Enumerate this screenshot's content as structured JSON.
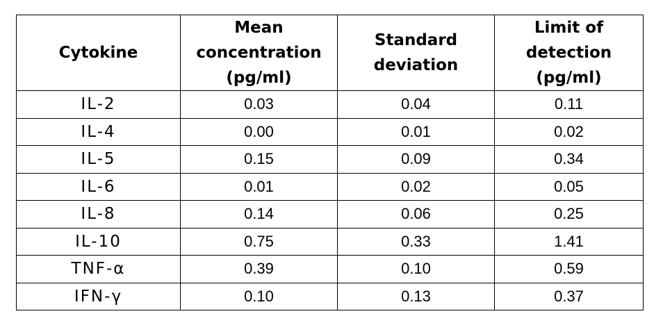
{
  "table": {
    "headers": [
      {
        "lines": [
          "Cytokine"
        ]
      },
      {
        "lines": [
          "Mean",
          "concentration",
          "(pg/ml)"
        ]
      },
      {
        "lines": [
          "Standard",
          "deviation"
        ]
      },
      {
        "lines": [
          "Limit of",
          "detection",
          "(pg/ml)"
        ]
      }
    ],
    "rows": [
      {
        "cytokine": "IL-2",
        "mean": "0.03",
        "sd": "0.04",
        "lod": "0.11"
      },
      {
        "cytokine": "IL-4",
        "mean": "0.00",
        "sd": "0.01",
        "lod": "0.02"
      },
      {
        "cytokine": "IL-5",
        "mean": "0.15",
        "sd": "0.09",
        "lod": "0.34"
      },
      {
        "cytokine": "IL-6",
        "mean": "0.01",
        "sd": "0.02",
        "lod": "0.05"
      },
      {
        "cytokine": "IL-8",
        "mean": "0.14",
        "sd": "0.06",
        "lod": "0.25"
      },
      {
        "cytokine": "IL-10",
        "mean": "0.75",
        "sd": "0.33",
        "lod": "1.41"
      },
      {
        "cytokine": "TNF-α",
        "mean": "0.39",
        "sd": "0.10",
        "lod": "0.59"
      },
      {
        "cytokine": "IFN-γ",
        "mean": "0.10",
        "sd": "0.13",
        "lod": "0.37"
      }
    ]
  }
}
